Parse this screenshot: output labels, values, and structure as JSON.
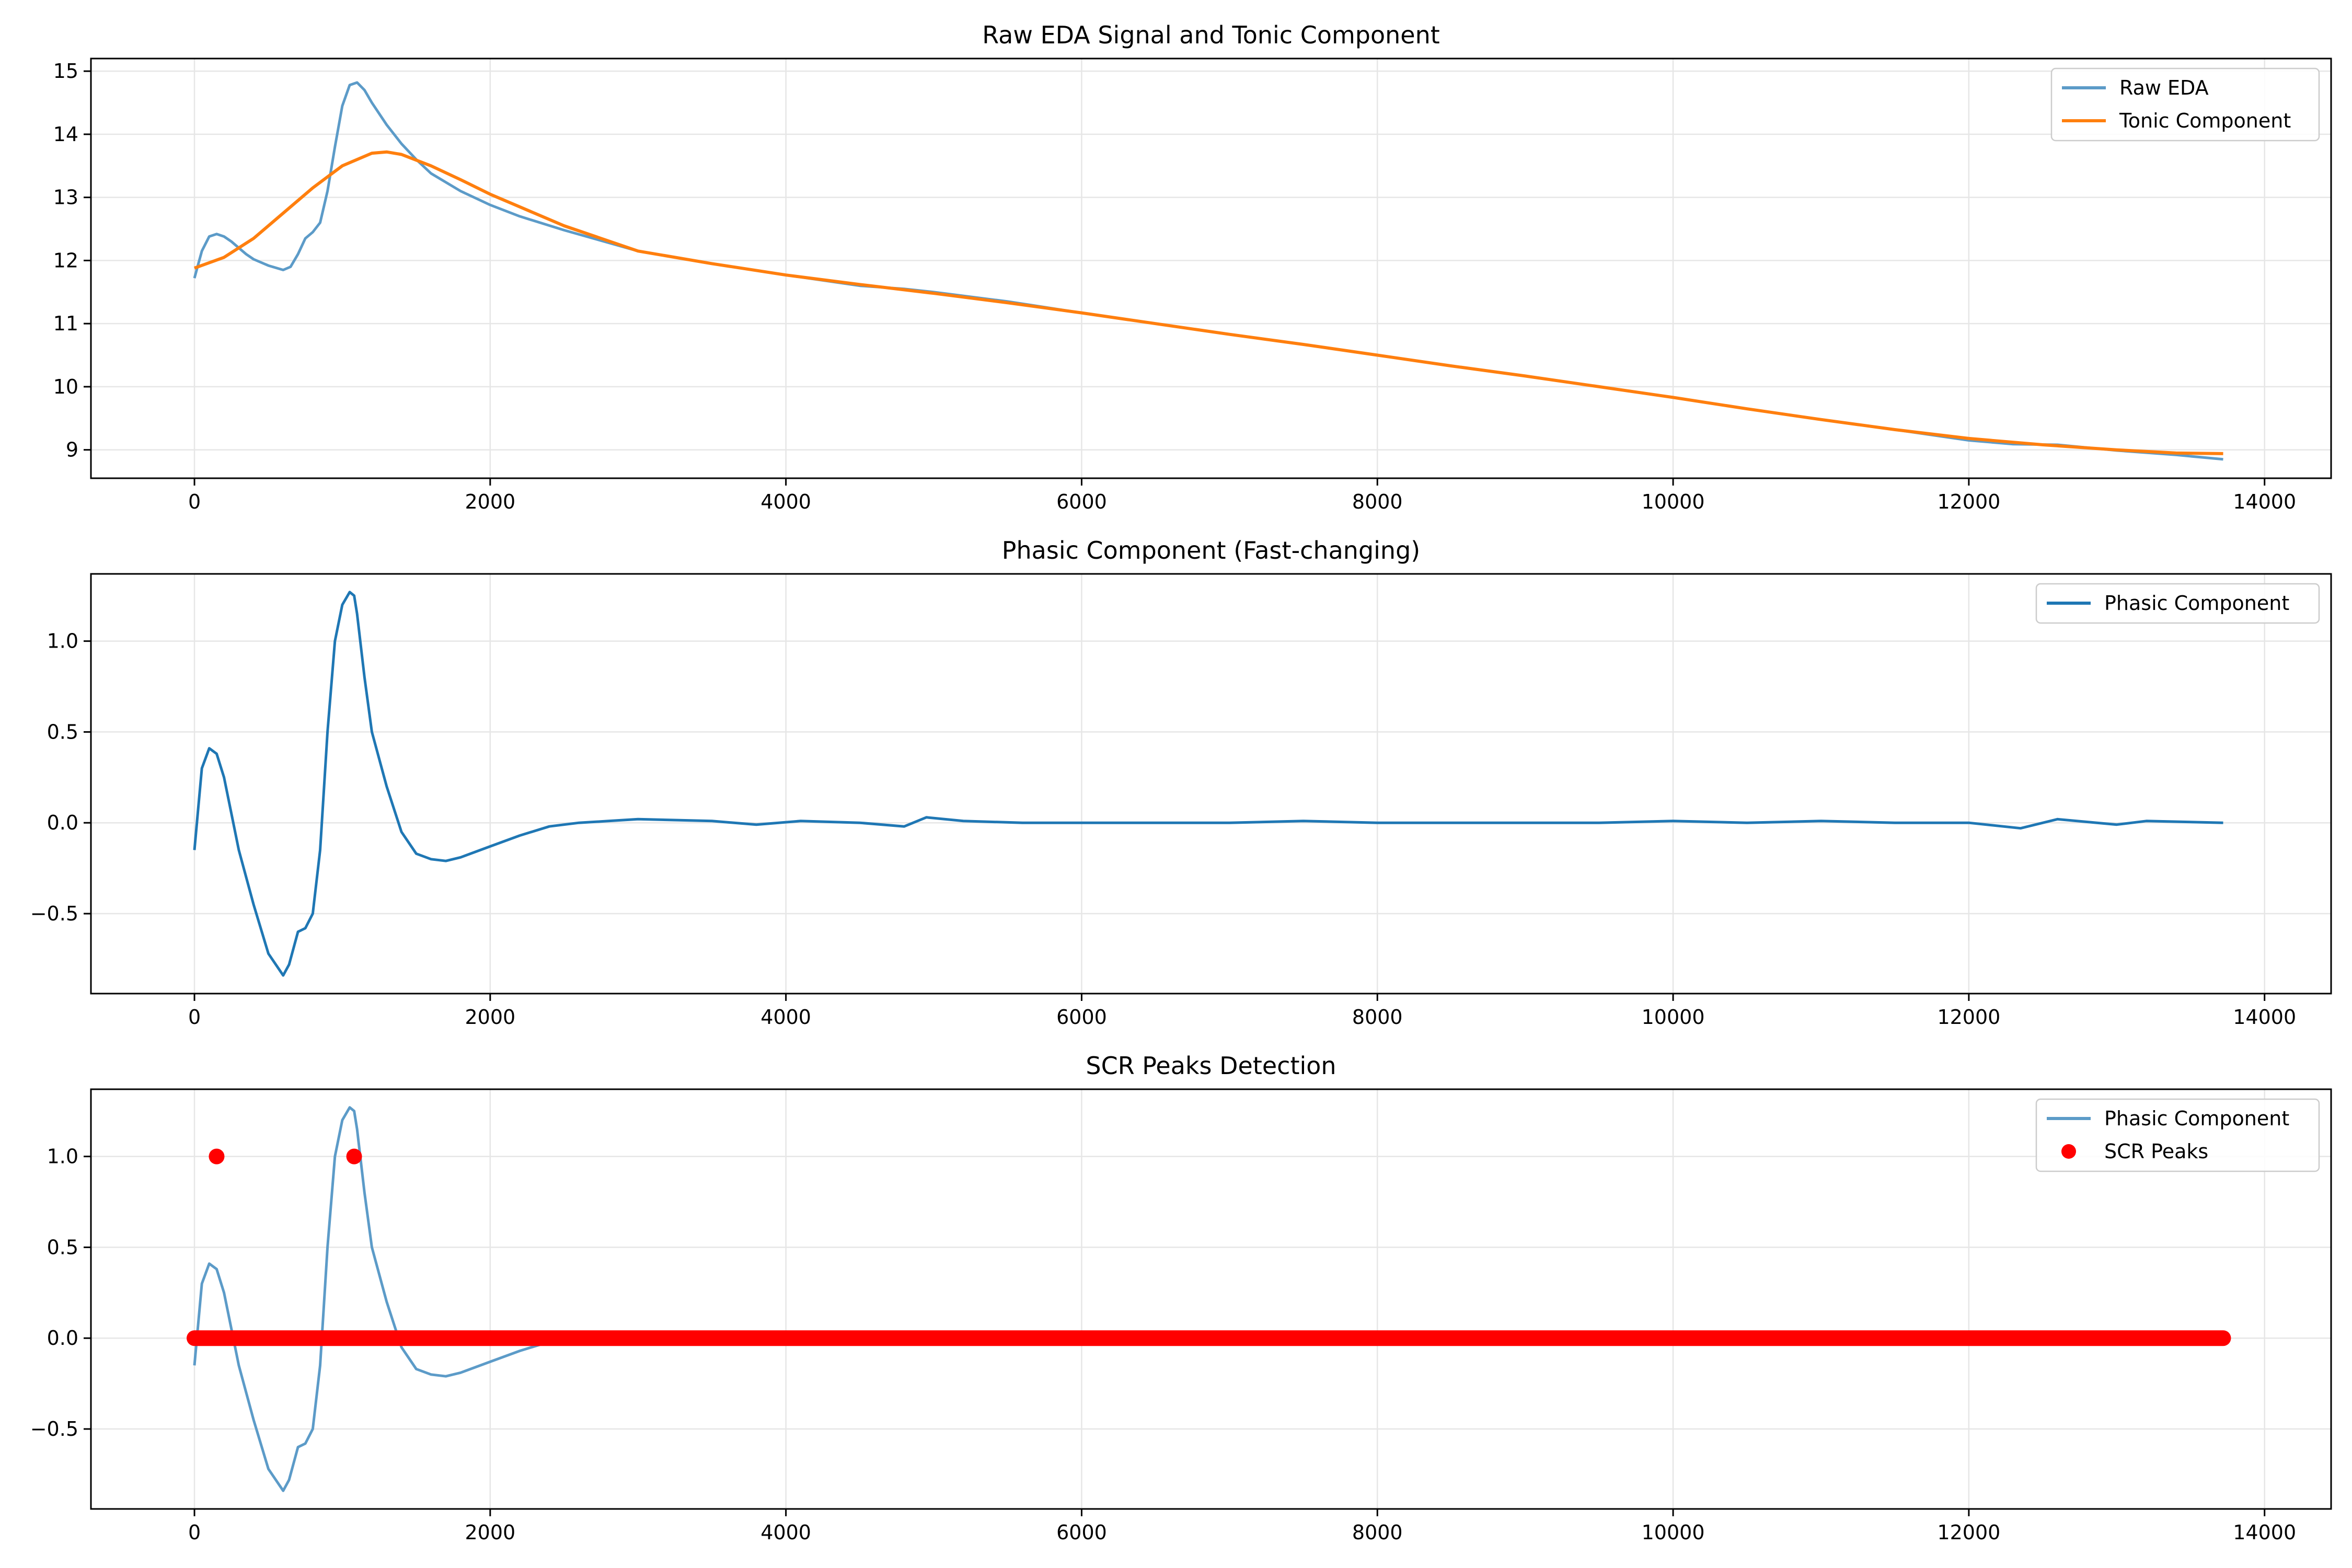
{
  "chart_data": [
    {
      "type": "line",
      "title": "Raw EDA Signal and Tonic Component",
      "xlabel": "",
      "ylabel": "",
      "xlim": [
        -700,
        14450
      ],
      "ylim": [
        8.55,
        15.2
      ],
      "xticks": [
        0,
        2000,
        4000,
        6000,
        8000,
        10000,
        12000,
        14000
      ],
      "xtick_labels": [
        "0",
        "2000",
        "4000",
        "6000",
        "8000",
        "10000",
        "12000",
        "14000"
      ],
      "yticks": [
        9,
        10,
        11,
        12,
        13,
        14,
        15
      ],
      "ytick_labels": [
        "9",
        "10",
        "11",
        "12",
        "13",
        "14",
        "15"
      ],
      "grid": true,
      "legend": "top-right",
      "series": [
        {
          "name": "Raw EDA",
          "color": "#5c9bc8",
          "style": "line",
          "x": [
            0,
            50,
            100,
            150,
            200,
            250,
            300,
            350,
            400,
            500,
            600,
            650,
            700,
            750,
            800,
            850,
            900,
            950,
            1000,
            1050,
            1100,
            1150,
            1200,
            1300,
            1400,
            1500,
            1600,
            1800,
            2000,
            2200,
            2500,
            3000,
            3500,
            4000,
            4500,
            4800,
            5000,
            5500,
            6000,
            6500,
            7000,
            7500,
            8000,
            8500,
            9000,
            9500,
            10000,
            10500,
            11000,
            11500,
            12000,
            12300,
            12600,
            13000,
            13400,
            13720
          ],
          "y": [
            11.72,
            12.15,
            12.38,
            12.42,
            12.38,
            12.3,
            12.2,
            12.1,
            12.02,
            11.92,
            11.85,
            11.9,
            12.1,
            12.35,
            12.45,
            12.6,
            13.1,
            13.8,
            14.45,
            14.78,
            14.82,
            14.7,
            14.5,
            14.15,
            13.85,
            13.6,
            13.38,
            13.1,
            12.88,
            12.7,
            12.48,
            12.15,
            11.95,
            11.77,
            11.6,
            11.55,
            11.5,
            11.35,
            11.17,
            11.0,
            10.83,
            10.67,
            10.5,
            10.33,
            10.17,
            10.0,
            9.83,
            9.65,
            9.48,
            9.32,
            9.15,
            9.09,
            9.08,
            8.99,
            8.92,
            8.85
          ]
        },
        {
          "name": "Tonic Component",
          "color": "#ff7f0e",
          "style": "line",
          "x": [
            0,
            200,
            400,
            600,
            800,
            1000,
            1200,
            1300,
            1400,
            1600,
            1800,
            2000,
            2200,
            2500,
            3000,
            3500,
            4000,
            4500,
            5000,
            5500,
            6000,
            6500,
            7000,
            7500,
            8000,
            8500,
            9000,
            9500,
            10000,
            10500,
            11000,
            11500,
            12000,
            12500,
            13000,
            13400,
            13720
          ],
          "y": [
            11.88,
            12.05,
            12.35,
            12.75,
            13.15,
            13.5,
            13.7,
            13.72,
            13.68,
            13.5,
            13.28,
            13.05,
            12.85,
            12.55,
            12.15,
            11.95,
            11.77,
            11.62,
            11.48,
            11.33,
            11.17,
            11.0,
            10.83,
            10.67,
            10.5,
            10.33,
            10.17,
            10.0,
            9.83,
            9.65,
            9.48,
            9.32,
            9.18,
            9.08,
            9.0,
            8.95,
            8.94
          ]
        }
      ]
    },
    {
      "type": "line",
      "title": "Phasic Component (Fast-changing)",
      "xlabel": "",
      "ylabel": "",
      "xlim": [
        -700,
        14450
      ],
      "ylim": [
        -0.94,
        1.37
      ],
      "xticks": [
        0,
        2000,
        4000,
        6000,
        8000,
        10000,
        12000,
        14000
      ],
      "xtick_labels": [
        "0",
        "2000",
        "4000",
        "6000",
        "8000",
        "10000",
        "12000",
        "14000"
      ],
      "yticks": [
        -0.5,
        0.0,
        0.5,
        1.0
      ],
      "ytick_labels": [
        "−0.5",
        "0.0",
        "0.5",
        "1.0"
      ],
      "grid": true,
      "legend": "top-right",
      "series": [
        {
          "name": "Phasic Component",
          "color": "#1f77b4",
          "style": "line",
          "x": [
            0,
            50,
            100,
            150,
            200,
            250,
            300,
            400,
            500,
            600,
            640,
            700,
            750,
            800,
            850,
            900,
            950,
            1000,
            1050,
            1080,
            1100,
            1150,
            1200,
            1300,
            1400,
            1500,
            1600,
            1700,
            1800,
            2000,
            2200,
            2400,
            2600,
            2800,
            3000,
            3500,
            3800,
            4100,
            4500,
            4800,
            4950,
            5200,
            5600,
            6000,
            6500,
            7000,
            7500,
            8000,
            8500,
            9000,
            9500,
            10000,
            10500,
            11000,
            11500,
            12000,
            12350,
            12600,
            13000,
            13200,
            13720
          ],
          "y": [
            -0.15,
            0.3,
            0.41,
            0.38,
            0.25,
            0.05,
            -0.15,
            -0.45,
            -0.72,
            -0.84,
            -0.78,
            -0.6,
            -0.58,
            -0.5,
            -0.15,
            0.5,
            1.0,
            1.2,
            1.27,
            1.25,
            1.15,
            0.8,
            0.5,
            0.2,
            -0.05,
            -0.17,
            -0.2,
            -0.21,
            -0.19,
            -0.13,
            -0.07,
            -0.02,
            0.0,
            0.01,
            0.02,
            0.01,
            -0.01,
            0.01,
            0.0,
            -0.02,
            0.03,
            0.01,
            0.0,
            0.0,
            0.0,
            0.0,
            0.01,
            0.0,
            0.0,
            0.0,
            0.0,
            0.01,
            0.0,
            0.01,
            0.0,
            0.0,
            -0.03,
            0.02,
            -0.01,
            0.01,
            0.0
          ]
        }
      ]
    },
    {
      "type": "scatter",
      "title": "SCR Peaks Detection",
      "xlabel": "",
      "ylabel": "",
      "xlim": [
        -700,
        14450
      ],
      "ylim": [
        -0.94,
        1.37
      ],
      "xticks": [
        0,
        2000,
        4000,
        6000,
        8000,
        10000,
        12000,
        14000
      ],
      "xtick_labels": [
        "0",
        "2000",
        "4000",
        "6000",
        "8000",
        "10000",
        "12000",
        "14000"
      ],
      "yticks": [
        -0.5,
        0.0,
        0.5,
        1.0
      ],
      "ytick_labels": [
        "−0.5",
        "0.0",
        "0.5",
        "1.0"
      ],
      "grid": true,
      "legend": "top-right",
      "series": [
        {
          "name": "Phasic Component",
          "color": "#5c9bc8",
          "style": "line",
          "x": [
            0,
            50,
            100,
            150,
            200,
            250,
            300,
            400,
            500,
            600,
            640,
            700,
            750,
            800,
            850,
            900,
            950,
            1000,
            1050,
            1080,
            1100,
            1150,
            1200,
            1300,
            1400,
            1500,
            1600,
            1700,
            1800,
            2000,
            2200,
            2400,
            2600,
            2800,
            3000,
            3500,
            3800,
            4100,
            4500,
            4800,
            4950,
            5200,
            5600,
            6000,
            6500,
            7000,
            7500,
            8000,
            8500,
            9000,
            9500,
            10000,
            10500,
            11000,
            11500,
            12000,
            12350,
            12600,
            13000,
            13200,
            13720
          ],
          "y": [
            -0.15,
            0.3,
            0.41,
            0.38,
            0.25,
            0.05,
            -0.15,
            -0.45,
            -0.72,
            -0.84,
            -0.78,
            -0.6,
            -0.58,
            -0.5,
            -0.15,
            0.5,
            1.0,
            1.2,
            1.27,
            1.25,
            1.15,
            0.8,
            0.5,
            0.2,
            -0.05,
            -0.17,
            -0.2,
            -0.21,
            -0.19,
            -0.13,
            -0.07,
            -0.02,
            0.0,
            0.01,
            0.02,
            0.01,
            -0.01,
            0.01,
            0.0,
            -0.02,
            0.03,
            0.01,
            0.0,
            0.0,
            0.0,
            0.0,
            0.01,
            0.0,
            0.0,
            0.0,
            0.0,
            0.01,
            0.0,
            0.01,
            0.0,
            0.0,
            -0.03,
            0.02,
            -0.01,
            0.01,
            0.0
          ]
        },
        {
          "name": "SCR Peaks",
          "color": "#ff0000",
          "style": "points",
          "peaks": {
            "x": [
              150,
              1080
            ],
            "y": [
              1,
              1
            ]
          },
          "baseline": {
            "x_start": 0,
            "x_end": 13720,
            "y": 0
          }
        }
      ]
    }
  ]
}
